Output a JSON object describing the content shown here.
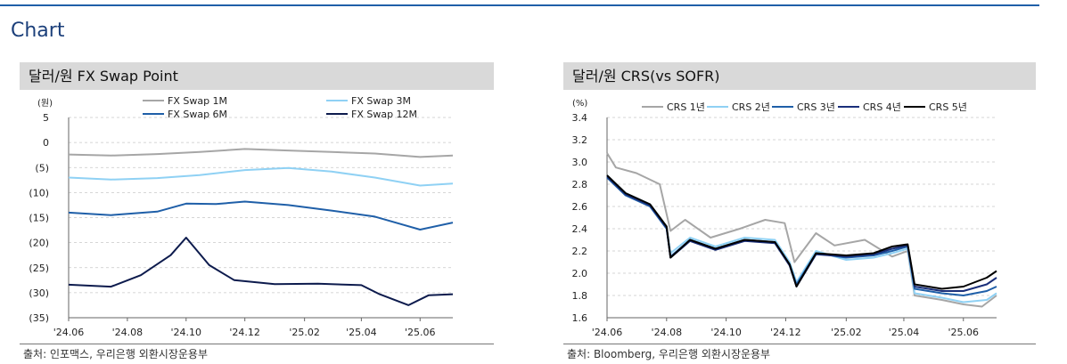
{
  "section_title": "Chart",
  "colors": {
    "accent": "#1f5fa8",
    "header_bg": "#d9d9d9"
  },
  "chart_data": [
    {
      "type": "line",
      "title": "달러/원 FX Swap Point",
      "unit": "(원)",
      "ylim": [
        -35,
        5
      ],
      "yticks": [
        5,
        0,
        -5,
        -10,
        -15,
        -20,
        -25,
        -30,
        -35
      ],
      "ytick_labels": [
        "5",
        "0",
        "(5)",
        "(10)",
        "(15)",
        "(20)",
        "(25)",
        "(30)",
        "(35)"
      ],
      "x_range": [
        "2024-06-01",
        "2025-07-05"
      ],
      "xtick_dates": [
        "2024-06-01",
        "2024-08-01",
        "2024-10-01",
        "2024-12-01",
        "2025-02-01",
        "2025-04-01",
        "2025-06-01"
      ],
      "xtick_labels": [
        "'24.06",
        "'24.08",
        "'24.10",
        "'24.12",
        "'25.02",
        "'25.04",
        "'25.06"
      ],
      "grid": "horizontal-dashed",
      "legend": "top",
      "series": [
        {
          "name": "FX Swap 1M",
          "color": "#a6a6a6",
          "x": [
            "2024-06-01",
            "2024-07-15",
            "2024-09-01",
            "2024-10-15",
            "2024-12-01",
            "2025-01-15",
            "2025-03-01",
            "2025-04-15",
            "2025-06-01",
            "2025-07-05"
          ],
          "values": [
            -2.4,
            -2.6,
            -2.3,
            -1.9,
            -1.3,
            -1.6,
            -1.9,
            -2.2,
            -2.9,
            -2.6
          ]
        },
        {
          "name": "FX Swap 3M",
          "color": "#8fd1f4",
          "x": [
            "2024-06-01",
            "2024-07-15",
            "2024-09-01",
            "2024-10-15",
            "2024-12-01",
            "2025-01-15",
            "2025-03-01",
            "2025-04-15",
            "2025-06-01",
            "2025-07-05"
          ],
          "values": [
            -7.0,
            -7.4,
            -7.1,
            -6.5,
            -5.5,
            -5.1,
            -5.8,
            -7.0,
            -8.6,
            -8.2
          ]
        },
        {
          "name": "FX Swap 6M",
          "color": "#1f5fa8",
          "x": [
            "2024-06-01",
            "2024-07-15",
            "2024-09-01",
            "2024-10-01",
            "2024-11-01",
            "2024-12-01",
            "2025-01-15",
            "2025-03-01",
            "2025-04-15",
            "2025-06-01",
            "2025-07-05"
          ],
          "values": [
            -14.0,
            -14.5,
            -13.8,
            -12.2,
            -12.3,
            -11.8,
            -12.5,
            -13.6,
            -14.8,
            -17.4,
            -16.0
          ]
        },
        {
          "name": "FX Swap 12M",
          "color": "#0d1b4d",
          "x": [
            "2024-06-01",
            "2024-07-15",
            "2024-08-15",
            "2024-09-15",
            "2024-10-01",
            "2024-10-25",
            "2024-11-20",
            "2025-01-01",
            "2025-02-15",
            "2025-04-01",
            "2025-04-20",
            "2025-05-20",
            "2025-06-10",
            "2025-07-05"
          ],
          "values": [
            -28.4,
            -28.8,
            -26.5,
            -22.5,
            -19.0,
            -24.5,
            -27.5,
            -28.3,
            -28.2,
            -28.5,
            -30.3,
            -32.5,
            -30.5,
            -30.3
          ]
        }
      ]
    },
    {
      "type": "line",
      "title": "달러/원 CRS(vs SOFR)",
      "unit": "(%)",
      "ylim": [
        1.6,
        3.4
      ],
      "yticks": [
        3.4,
        3.2,
        3.0,
        2.8,
        2.6,
        2.4,
        2.2,
        2.0,
        1.8,
        1.6
      ],
      "ytick_labels": [
        "3.4",
        "3.2",
        "3.0",
        "2.8",
        "2.6",
        "2.4",
        "2.2",
        "2.0",
        "1.8",
        "1.6"
      ],
      "x_range": [
        "2024-06-01",
        "2025-07-05"
      ],
      "xtick_dates": [
        "2024-06-01",
        "2024-08-01",
        "2024-10-01",
        "2024-12-01",
        "2025-02-01",
        "2025-04-01",
        "2025-06-01"
      ],
      "xtick_labels": [
        "'24.06",
        "'24.08",
        "'24.10",
        "'24.12",
        "'25.02",
        "'25.04",
        "'25.06"
      ],
      "grid": "horizontal-dashed",
      "legend": "top",
      "series": [
        {
          "name": "CRS 1년",
          "color": "#a6a6a6",
          "x": [
            "2024-06-01",
            "2024-06-10",
            "2024-07-01",
            "2024-07-25",
            "2024-08-05",
            "2024-08-20",
            "2024-09-15",
            "2024-10-15",
            "2024-11-10",
            "2024-11-30",
            "2024-12-10",
            "2025-01-01",
            "2025-01-20",
            "2025-02-20",
            "2025-03-20",
            "2025-04-05",
            "2025-04-12",
            "2025-05-10",
            "2025-06-01",
            "2025-06-20",
            "2025-07-05"
          ],
          "values": [
            3.08,
            2.95,
            2.9,
            2.8,
            2.38,
            2.48,
            2.32,
            2.4,
            2.48,
            2.45,
            2.1,
            2.36,
            2.25,
            2.3,
            2.15,
            2.2,
            1.8,
            1.76,
            1.72,
            1.7,
            1.8
          ]
        },
        {
          "name": "CRS 2년",
          "color": "#8fd1f4",
          "x": [
            "2024-06-01",
            "2024-06-20",
            "2024-07-15",
            "2024-08-01",
            "2024-08-05",
            "2024-08-25",
            "2024-09-20",
            "2024-10-20",
            "2024-11-20",
            "2024-12-05",
            "2024-12-12",
            "2025-01-01",
            "2025-02-01",
            "2025-03-01",
            "2025-03-20",
            "2025-04-05",
            "2025-04-12",
            "2025-05-10",
            "2025-06-01",
            "2025-06-25",
            "2025-07-05"
          ],
          "values": [
            2.88,
            2.72,
            2.62,
            2.42,
            2.18,
            2.32,
            2.24,
            2.32,
            2.3,
            2.1,
            1.92,
            2.2,
            2.12,
            2.14,
            2.18,
            2.22,
            1.82,
            1.78,
            1.74,
            1.76,
            1.82
          ]
        },
        {
          "name": "CRS 3년",
          "color": "#1f5fa8",
          "x": [
            "2024-06-01",
            "2024-06-20",
            "2024-07-15",
            "2024-08-01",
            "2024-08-05",
            "2024-08-25",
            "2024-09-20",
            "2024-10-20",
            "2024-11-20",
            "2024-12-05",
            "2024-12-12",
            "2025-01-01",
            "2025-02-01",
            "2025-03-01",
            "2025-03-20",
            "2025-04-05",
            "2025-04-12",
            "2025-05-10",
            "2025-06-01",
            "2025-06-25",
            "2025-07-05"
          ],
          "values": [
            2.86,
            2.7,
            2.6,
            2.4,
            2.15,
            2.3,
            2.22,
            2.3,
            2.28,
            2.08,
            1.9,
            2.18,
            2.14,
            2.16,
            2.2,
            2.24,
            1.86,
            1.82,
            1.8,
            1.84,
            1.88
          ]
        },
        {
          "name": "CRS 4년",
          "color": "#1a2f7a",
          "x": [
            "2024-06-01",
            "2024-06-20",
            "2024-07-15",
            "2024-08-01",
            "2024-08-05",
            "2024-08-25",
            "2024-09-20",
            "2024-10-20",
            "2024-11-20",
            "2024-12-05",
            "2024-12-12",
            "2025-01-01",
            "2025-02-01",
            "2025-03-01",
            "2025-03-20",
            "2025-04-05",
            "2025-04-12",
            "2025-05-10",
            "2025-06-01",
            "2025-06-25",
            "2025-07-05"
          ],
          "values": [
            2.87,
            2.71,
            2.61,
            2.41,
            2.14,
            2.29,
            2.21,
            2.29,
            2.27,
            2.07,
            1.88,
            2.17,
            2.15,
            2.17,
            2.22,
            2.25,
            1.88,
            1.84,
            1.84,
            1.9,
            1.96
          ]
        },
        {
          "name": "CRS 5년",
          "color": "#000000",
          "x": [
            "2024-06-01",
            "2024-06-20",
            "2024-07-15",
            "2024-08-01",
            "2024-08-05",
            "2024-08-25",
            "2024-09-20",
            "2024-10-20",
            "2024-11-20",
            "2024-12-05",
            "2024-12-12",
            "2025-01-01",
            "2025-02-01",
            "2025-03-01",
            "2025-03-20",
            "2025-04-05",
            "2025-04-12",
            "2025-05-10",
            "2025-06-01",
            "2025-06-25",
            "2025-07-05"
          ],
          "values": [
            2.88,
            2.72,
            2.62,
            2.42,
            2.14,
            2.3,
            2.22,
            2.3,
            2.28,
            2.08,
            1.88,
            2.18,
            2.16,
            2.18,
            2.24,
            2.26,
            1.9,
            1.86,
            1.88,
            1.96,
            2.02
          ]
        }
      ]
    }
  ],
  "sources": [
    "출처: 인포맥스, 우리은행 외환시장운용부",
    "출처: Bloomberg, 우리은행 외환시장운용부"
  ]
}
